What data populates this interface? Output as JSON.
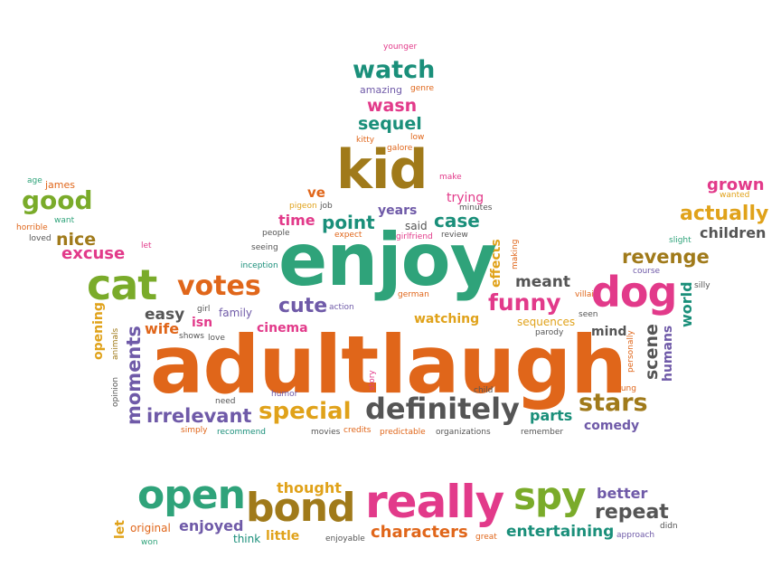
{
  "colors": {
    "orange": "#e0661a",
    "green": "#2fa37a",
    "teal": "#1a8f7a",
    "pink": "#e23a8a",
    "olive": "#a07a1a",
    "purple": "#6f5aa8",
    "gold": "#e0a21a",
    "lime": "#7aab2a",
    "gray": "#555555"
  },
  "words": {
    "adult": "adult",
    "laugh": "laugh",
    "enjoy": "enjoy",
    "kid": "kid",
    "really": "really",
    "bond": "bond",
    "open": "open",
    "spy": "spy",
    "cat": "cat",
    "dog": "dog",
    "definitely": "definitely",
    "watch": "watch",
    "votes": "votes",
    "funny": "funny",
    "special": "special",
    "irrelevant": "irrelevant",
    "moments": "moments",
    "stars": "stars",
    "good": "good",
    "nice": "nice",
    "excuse": "excuse",
    "actually": "actually",
    "grown": "grown",
    "children": "children",
    "revenge": "revenge",
    "cute": "cute",
    "point": "point",
    "case": "case",
    "wasn": "wasn",
    "sequel": "sequel",
    "amazing": "amazing",
    "genre": "genre",
    "younger": "younger",
    "kitty": "kitty",
    "low": "low",
    "galore": "galore",
    "make": "make",
    "trying": "trying",
    "minutes": "minutes",
    "ve": "ve",
    "job": "job",
    "pigeon": "pigeon",
    "years": "years",
    "time": "time",
    "people": "people",
    "said": "said",
    "girlfriend": "girlfriend",
    "review": "review",
    "expect": "expect",
    "seeing": "seeing",
    "effects": "effects",
    "making": "making",
    "meant": "meant",
    "villain": "villain",
    "course": "course",
    "slight": "slight",
    "silly": "silly",
    "world": "world",
    "inception": "inception",
    "action": "action",
    "german": "german",
    "watching": "watching",
    "sequences": "sequences",
    "seen": "seen",
    "parody": "parody",
    "mind": "mind",
    "scene": "scene",
    "humans": "humans",
    "personally": "personally",
    "young": "young",
    "easy": "easy",
    "girl": "girl",
    "family": "family",
    "isn": "isn",
    "wife": "wife",
    "shows": "shows",
    "love": "love",
    "cinema": "cinema",
    "opening": "opening",
    "animals": "animals",
    "opinion": "opinion",
    "need": "need",
    "humor": "humor",
    "story": "story",
    "child": "child",
    "parts": "parts",
    "comedy": "comedy",
    "simply": "simply",
    "recommend": "recommend",
    "movies": "movies",
    "credits": "credits",
    "predictable": "predictable",
    "organizations": "organizations",
    "remember": "remember",
    "age": "age",
    "james": "james",
    "horrible": "horrible",
    "want": "want",
    "loved": "loved",
    "let_small": "let",
    "wanted": "wanted",
    "thought": "thought",
    "better": "better",
    "repeat": "repeat",
    "didn": "didn",
    "approach": "approach",
    "entertaining": "entertaining",
    "characters": "characters",
    "great": "great",
    "enjoyable": "enjoyable",
    "little": "little",
    "think": "think",
    "enjoyed": "enjoyed",
    "original": "original",
    "won": "won",
    "let": "let"
  }
}
